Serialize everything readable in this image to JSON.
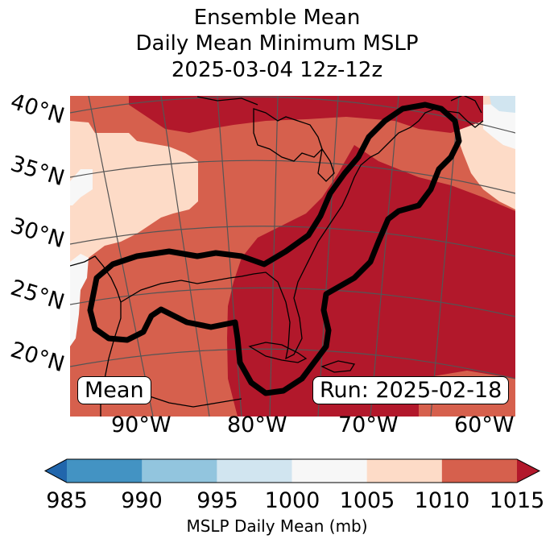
{
  "title": {
    "line1": "Ensemble Mean",
    "line2": "Daily Mean Minimum MSLP",
    "line3": "2025-03-04 12z-12z"
  },
  "map": {
    "lat_labels": [
      "40°N",
      "35°N",
      "30°N",
      "25°N",
      "20°N"
    ],
    "lon_labels": [
      "90°W",
      "80°W",
      "70°W",
      "60°W"
    ],
    "stat_box": "Mean",
    "run_box": "Run: 2025-02-18"
  },
  "colorbar": {
    "ticks": [
      "985",
      "990",
      "995",
      "1000",
      "1005",
      "1010",
      "1015"
    ],
    "label": "MSLP Daily Mean (mb)",
    "colors": [
      "#2166ac",
      "#4393c3",
      "#92c5de",
      "#d1e5f0",
      "#f7f7f7",
      "#fddbc7",
      "#d6604d",
      "#b2182b"
    ]
  }
}
